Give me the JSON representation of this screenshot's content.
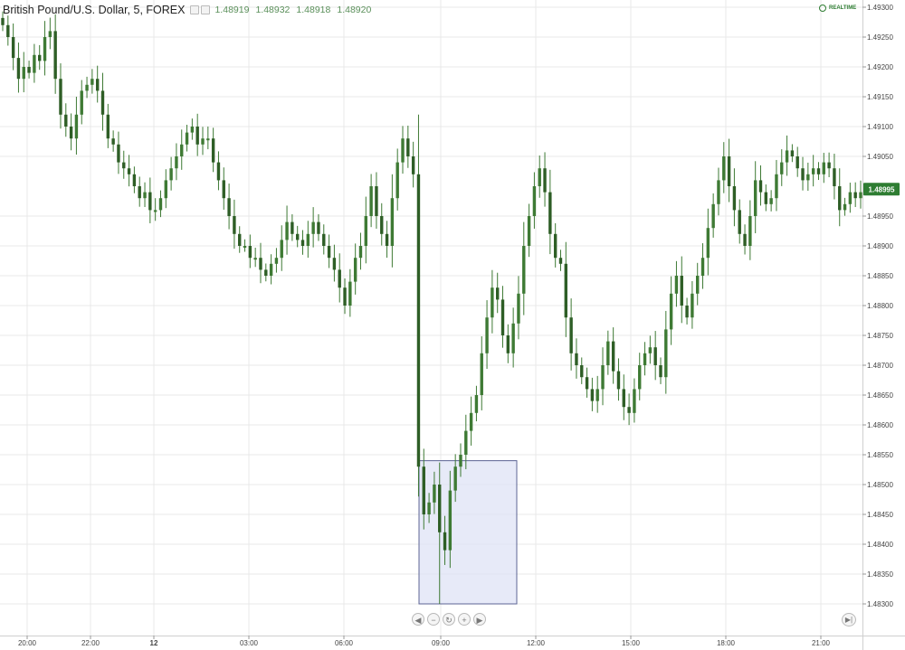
{
  "header": {
    "symbol": "British Pound/U.S. Dollar, 5, FOREX",
    "open": "1.48919",
    "high": "1.48932",
    "low": "1.48918",
    "close": "1.48920"
  },
  "realtime_label": "REALTIME",
  "colors": {
    "up": "#3e7a34",
    "down": "#2e5e26",
    "wick": "#3e7a34",
    "grid": "#e8e8e8",
    "highlight_fill": "#dfe3f6",
    "highlight_stroke": "#5d6494",
    "price_tag": "#2e7d32"
  },
  "navigation": {
    "icons": [
      "left-arrow-icon",
      "zoom-out-icon",
      "reset-icon",
      "zoom-in-icon",
      "right-arrow-icon"
    ],
    "go_to_end_icon": "go-to-end-icon"
  },
  "chart_data": {
    "type": "candlestick",
    "ylim": [
      1.4827,
      1.4933
    ],
    "y_ticks": [
      "1.49300",
      "1.49250",
      "1.49200",
      "1.49150",
      "1.49100",
      "1.49050",
      "1.48950",
      "1.48900",
      "1.48850",
      "1.48800",
      "1.48750",
      "1.48700",
      "1.48650",
      "1.48600",
      "1.48550",
      "1.48500",
      "1.48450",
      "1.48400",
      "1.48350",
      "1.48300"
    ],
    "x_ticks": [
      "20:00",
      "22:00",
      "12",
      "03:00",
      "06:00",
      "09:00",
      "12:00",
      "15:00",
      "18:00",
      "21:00"
    ],
    "bold_x_ticks": [
      "12"
    ],
    "last_price": "1.48995",
    "highlight": {
      "from": "09:00",
      "to": "11:15",
      "price_low": 1.483,
      "price_high": 1.4854
    },
    "series": [
      1.4927,
      1.4925,
      1.49215,
      1.4918,
      1.492,
      1.4919,
      1.4922,
      1.4921,
      1.4925,
      1.4926,
      1.4918,
      1.4912,
      1.491,
      1.4908,
      1.4912,
      1.4916,
      1.4917,
      1.4918,
      1.4916,
      1.4912,
      1.4908,
      1.4907,
      1.4904,
      1.4903,
      1.4902,
      1.49,
      1.4898,
      1.4899,
      1.4896,
      1.4896,
      1.4898,
      1.4901,
      1.4903,
      1.4905,
      1.4907,
      1.4909,
      1.491,
      1.4907,
      1.4908,
      1.4908,
      1.4904,
      1.4901,
      1.4898,
      1.4895,
      1.4892,
      1.489,
      1.489,
      1.4888,
      1.4888,
      1.4886,
      1.4885,
      1.4887,
      1.4888,
      1.4891,
      1.4894,
      1.4892,
      1.4891,
      1.489,
      1.4892,
      1.4894,
      1.4892,
      1.489,
      1.4888,
      1.4886,
      1.4883,
      1.488,
      1.4884,
      1.4888,
      1.489,
      1.4895,
      1.49,
      1.4895,
      1.4892,
      1.489,
      1.4898,
      1.4904,
      1.4908,
      1.4905,
      1.4902,
      1.4853,
      1.4845,
      1.4847,
      1.485,
      1.4842,
      1.4839,
      1.4849,
      1.4853,
      1.4855,
      1.4859,
      1.4862,
      1.4865,
      1.4872,
      1.4878,
      1.4883,
      1.4881,
      1.4875,
      1.4872,
      1.4877,
      1.4882,
      1.489,
      1.4895,
      1.49,
      1.4903,
      1.4899,
      1.4892,
      1.4888,
      1.4887,
      1.4878,
      1.4872,
      1.487,
      1.4868,
      1.4866,
      1.4864,
      1.4866,
      1.487,
      1.4874,
      1.4869,
      1.4866,
      1.4863,
      1.4862,
      1.4866,
      1.487,
      1.4872,
      1.4873,
      1.487,
      1.4868,
      1.4876,
      1.4882,
      1.4885,
      1.488,
      1.4878,
      1.4882,
      1.4885,
      1.4888,
      1.4893,
      1.4897,
      1.4901,
      1.4905,
      1.49,
      1.4896,
      1.4892,
      1.489,
      1.4895,
      1.4901,
      1.4899,
      1.4897,
      1.4898,
      1.4902,
      1.4904,
      1.4906,
      1.4905,
      1.4903,
      1.4901,
      1.4902,
      1.4903,
      1.4902,
      1.4904,
      1.4903,
      1.49,
      1.4896,
      1.4897,
      1.4899,
      1.4898,
      1.4899
    ]
  }
}
